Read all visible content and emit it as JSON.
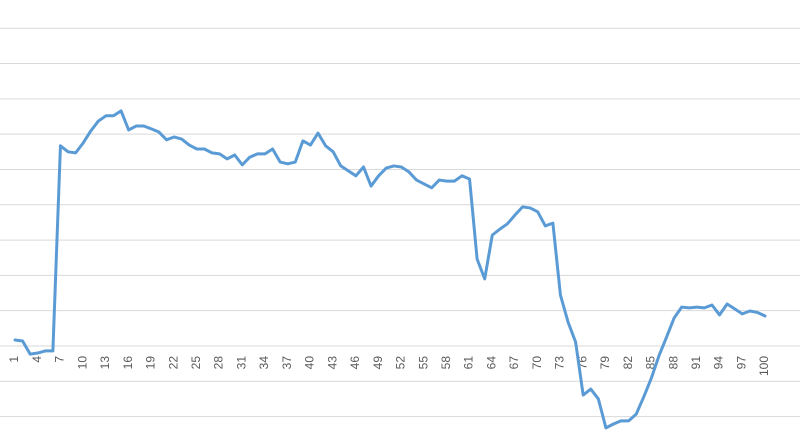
{
  "chart_data": {
    "type": "line",
    "categories": [
      "1",
      null,
      null,
      "4",
      null,
      null,
      "7",
      null,
      null,
      "10",
      null,
      null,
      "13",
      null,
      null,
      "16",
      null,
      null,
      "19",
      null,
      null,
      "22",
      null,
      null,
      "25",
      null,
      null,
      "28",
      null,
      null,
      "31",
      null,
      null,
      "34",
      null,
      null,
      "37",
      null,
      null,
      "40",
      null,
      null,
      "43",
      null,
      null,
      "46",
      null,
      null,
      "49",
      null,
      null,
      "52",
      null,
      null,
      "55",
      null,
      null,
      "58",
      null,
      null,
      "61",
      null,
      null,
      "64",
      null,
      null,
      "67",
      null,
      null,
      "70",
      null,
      null,
      "73",
      null,
      null,
      "76",
      null,
      null,
      "79",
      null,
      null,
      "82",
      null,
      null,
      "85",
      null,
      null,
      "88",
      null,
      null,
      "91",
      null,
      null,
      "94",
      null,
      null,
      "97",
      null,
      null,
      "100"
    ],
    "values": [
      0.17,
      0.14,
      -0.23,
      -0.2,
      -0.14,
      -0.14,
      5.67,
      5.5,
      5.47,
      5.75,
      6.09,
      6.37,
      6.52,
      6.52,
      6.66,
      6.12,
      6.23,
      6.23,
      6.15,
      6.06,
      5.84,
      5.92,
      5.86,
      5.69,
      5.58,
      5.58,
      5.47,
      5.44,
      5.3,
      5.41,
      5.13,
      5.35,
      5.44,
      5.44,
      5.58,
      5.21,
      5.16,
      5.21,
      5.81,
      5.69,
      6.03,
      5.67,
      5.5,
      5.1,
      4.96,
      4.82,
      5.07,
      4.53,
      4.82,
      5.04,
      5.1,
      5.07,
      4.93,
      4.7,
      4.59,
      4.48,
      4.7,
      4.67,
      4.67,
      4.82,
      4.73,
      2.46,
      1.9,
      3.14,
      3.31,
      3.46,
      3.71,
      3.94,
      3.91,
      3.8,
      3.4,
      3.48,
      1.44,
      0.68,
      0.11,
      -1.39,
      -1.22,
      -1.5,
      -2.32,
      -2.21,
      -2.12,
      -2.12,
      -1.93,
      -1.44,
      -0.91,
      -0.28,
      0.25,
      0.79,
      1.1,
      1.08,
      1.1,
      1.08,
      1.16,
      0.88,
      1.19,
      1.05,
      0.91,
      0.99,
      0.95,
      0.85
    ],
    "color": "#5b9bd5",
    "ylim": [
      -2.89,
      9.8
    ],
    "yticks": [
      -2,
      -1,
      0,
      1,
      2,
      3,
      4,
      5,
      6,
      7,
      8,
      9
    ],
    "grid": true
  }
}
